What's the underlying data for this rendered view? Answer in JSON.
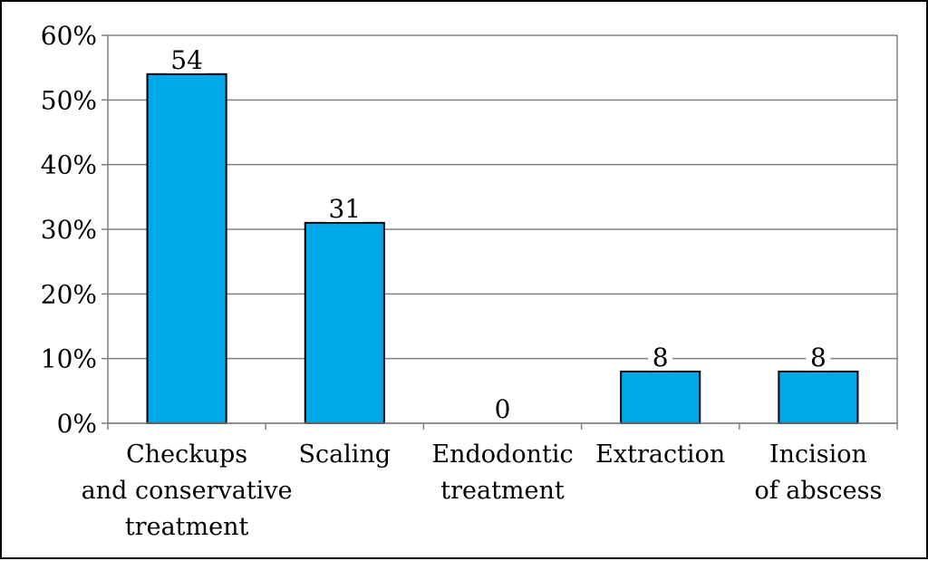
{
  "chart_data": {
    "type": "bar",
    "title": "",
    "xlabel": "",
    "ylabel": "",
    "categories": [
      [
        "Checkups",
        "and conservative",
        "treatment"
      ],
      [
        "Scaling"
      ],
      [
        "Endodontic",
        "treatment"
      ],
      [
        "Extraction"
      ],
      [
        "Incision",
        "of abscess"
      ]
    ],
    "values": [
      54,
      31,
      0,
      8,
      8
    ],
    "data_labels": [
      "54",
      "31",
      "0",
      "8",
      "8"
    ],
    "ylim": [
      0,
      60
    ],
    "yticks": [
      0,
      10,
      20,
      30,
      40,
      50,
      60
    ],
    "ytick_labels": [
      "0%",
      "10%",
      "20%",
      "30%",
      "40%",
      "50%",
      "60%"
    ],
    "grid": true,
    "legend": "none",
    "colors": {
      "bar": "#00A8E8",
      "bar_edge": "#000000",
      "grid": "#808080"
    }
  }
}
